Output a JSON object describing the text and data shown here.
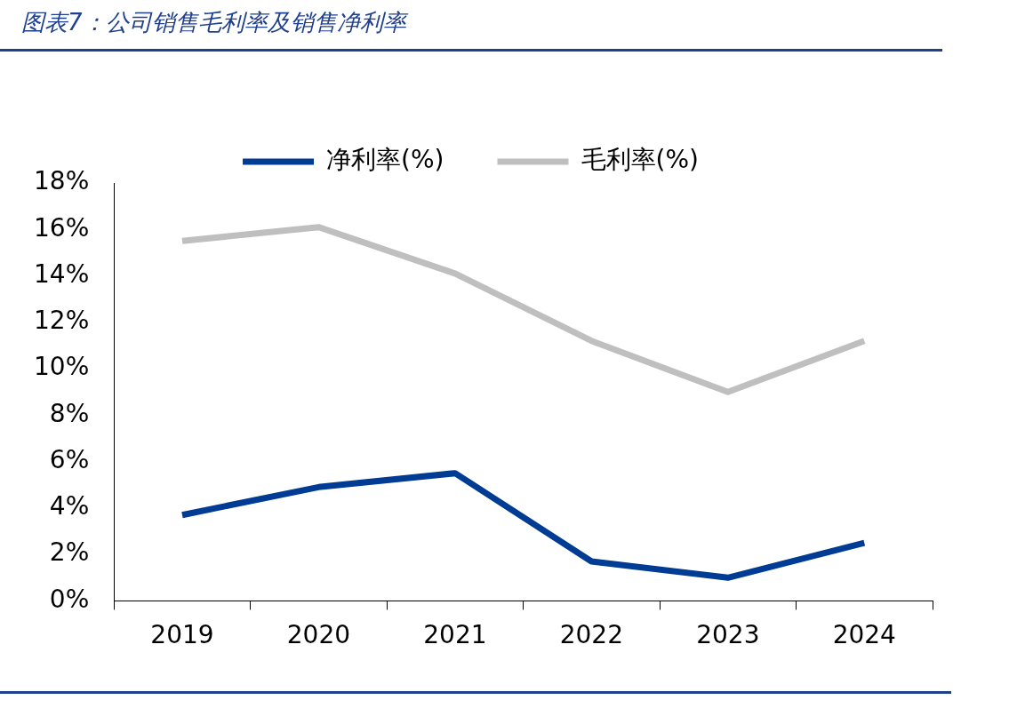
{
  "chart_data": {
    "type": "line",
    "title": "图表7：公司销售毛利率及销售净利率",
    "categories": [
      "2019",
      "2020",
      "2021",
      "2022",
      "2023",
      "2024"
    ],
    "series": [
      {
        "name": "净利率(%)",
        "color": "#003b94",
        "values": [
          3.7,
          4.9,
          5.5,
          1.7,
          1.0,
          2.5
        ]
      },
      {
        "name": "毛利率(%)",
        "color": "#bfbfbf",
        "values": [
          15.5,
          16.1,
          14.1,
          11.2,
          9.0,
          11.2
        ]
      }
    ],
    "ylim": [
      0,
      18
    ],
    "yticks": [
      {
        "value": 0,
        "label": "0%"
      },
      {
        "value": 2,
        "label": "2%"
      },
      {
        "value": 4,
        "label": "4%"
      },
      {
        "value": 6,
        "label": "6%"
      },
      {
        "value": 8,
        "label": "8%"
      },
      {
        "value": 10,
        "label": "10%"
      },
      {
        "value": 12,
        "label": "12%"
      },
      {
        "value": 14,
        "label": "14%"
      },
      {
        "value": 16,
        "label": "16%"
      },
      {
        "value": 18,
        "label": "18%"
      }
    ],
    "grid": false,
    "legend": "top",
    "marker": "none",
    "line_style": "solid"
  }
}
